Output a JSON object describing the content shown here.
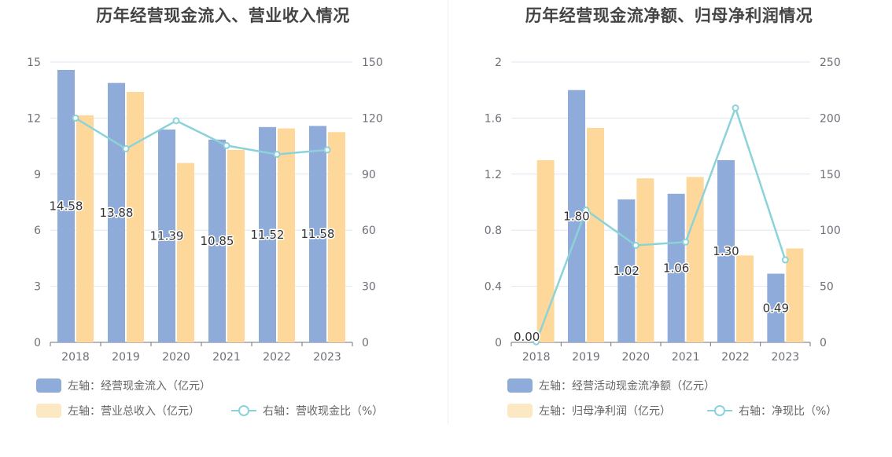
{
  "colors": {
    "bar1": "#8eabd9",
    "bar2": "#fdd89a",
    "line": "#8bd3d9",
    "grid": "#e0e6f1",
    "axis": "#6e7079"
  },
  "chart_data": [
    {
      "type": "bar",
      "title": "历年经营现金流入、营业收入情况",
      "categories": [
        "2018",
        "2019",
        "2020",
        "2021",
        "2022",
        "2023"
      ],
      "ylim_left": [
        0,
        15
      ],
      "yticks_left": [
        0,
        3,
        6,
        9,
        12,
        15
      ],
      "ylim_right": [
        0,
        150
      ],
      "yticks_right": [
        0,
        30,
        60,
        90,
        120,
        150
      ],
      "series": [
        {
          "name": "左轴：经营现金流入（亿元）",
          "type": "bar",
          "axis": "left",
          "values": [
            14.58,
            13.88,
            11.39,
            10.85,
            11.52,
            11.58
          ],
          "labels": [
            "14.58",
            "13.88",
            "11.39",
            "10.85",
            "11.52",
            "11.58"
          ]
        },
        {
          "name": "左轴：营业总收入（亿元）",
          "type": "bar",
          "axis": "left",
          "values": [
            12.15,
            13.4,
            9.6,
            10.3,
            11.45,
            11.25
          ]
        },
        {
          "name": "右轴：营收现金比（%）",
          "type": "line",
          "axis": "right",
          "values": [
            120,
            103.6,
            118.6,
            105.3,
            100.6,
            103
          ]
        }
      ],
      "legend": "bottom"
    },
    {
      "type": "bar",
      "title": "历年经营现金流净额、归母净利润情况",
      "categories": [
        "2018",
        "2019",
        "2020",
        "2021",
        "2022",
        "2023"
      ],
      "ylim_left": [
        0,
        2
      ],
      "yticks_left": [
        "0",
        "0.4",
        "0.8",
        "1.2",
        "1.6",
        "2"
      ],
      "ylim_right": [
        0,
        250
      ],
      "yticks_right": [
        0,
        50,
        100,
        150,
        200,
        250
      ],
      "series": [
        {
          "name": "左轴：经营活动现金流净额（亿元）",
          "type": "bar",
          "axis": "left",
          "values": [
            0.0,
            1.8,
            1.02,
            1.06,
            1.3,
            0.49
          ],
          "labels": [
            "0.00",
            "1.80",
            "1.02",
            "1.06",
            "1.30",
            "0.49"
          ]
        },
        {
          "name": "左轴：归母净利润（亿元）",
          "type": "bar",
          "axis": "left",
          "values": [
            1.3,
            1.53,
            1.17,
            1.18,
            0.62,
            0.67
          ]
        },
        {
          "name": "右轴：净现比（%）",
          "type": "line",
          "axis": "right",
          "values": [
            0.5,
            118,
            86.5,
            89.5,
            209,
            73.5
          ]
        }
      ],
      "legend": "bottom"
    }
  ]
}
